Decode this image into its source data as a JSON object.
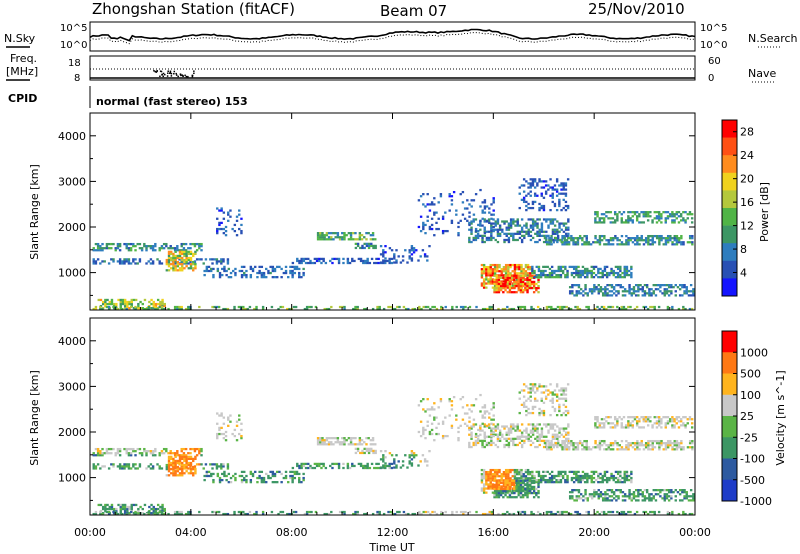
{
  "header": {
    "station_title": "Zhongshan Station (fitACF)",
    "beam": "Beam 07",
    "date": "25/Nov/2010"
  },
  "top_panel": {
    "left_label": "N.Sky",
    "right_label": "N.Search",
    "left_ticks": [
      "10^5",
      "10^0"
    ],
    "right_ticks": [
      "10^5",
      "10^0"
    ]
  },
  "freq_panel": {
    "label_line1": "Freq.",
    "label_line2": "[MHz]",
    "left_ticks": [
      "18",
      "8"
    ],
    "right_label": "Nave",
    "right_ticks": [
      "60",
      "0"
    ]
  },
  "cpid": {
    "label": "CPID",
    "text": "normal (fast stereo) 153"
  },
  "x_axis": {
    "ticks": [
      "00:00",
      "04:00",
      "08:00",
      "12:00",
      "16:00",
      "20:00",
      "00:00"
    ],
    "label": "Time UT"
  },
  "chart_data": [
    {
      "type": "heatmap",
      "ylabel": "Slant Range [km]",
      "yticks": [
        "1000",
        "2000",
        "3000",
        "4000"
      ],
      "ylim": [
        180,
        4500
      ],
      "xlim": [
        0,
        24
      ],
      "colorbar": {
        "label": "Power [dB]",
        "ticks": [
          "4",
          "8",
          "12",
          "16",
          "20",
          "24",
          "28"
        ],
        "colors": [
          "#1414ff",
          "#2850b4",
          "#2e7dbe",
          "#3c9664",
          "#50b446",
          "#b4c83c",
          "#f0d21e",
          "#ff8c1e",
          "#ff5014",
          "#ff0000"
        ],
        "range": [
          0,
          30
        ]
      }
    },
    {
      "type": "heatmap",
      "ylabel": "Slant Range [km]",
      "yticks": [
        "1000",
        "2000",
        "3000",
        "4000"
      ],
      "ylim": [
        180,
        4500
      ],
      "xlim": [
        0,
        24
      ],
      "colorbar": {
        "label": "Velocity [m s^-1]",
        "ticks": [
          "1000",
          "500",
          "100",
          "25",
          "-25",
          "-100",
          "-500",
          "-1000"
        ],
        "colors": [
          "#1e3cc8",
          "#2d5aa0",
          "#3c9664",
          "#5ab446",
          "#c8c8c8",
          "#ffb41e",
          "#ff7814",
          "#ff0000"
        ],
        "range": [
          -1000,
          1000
        ]
      }
    }
  ]
}
